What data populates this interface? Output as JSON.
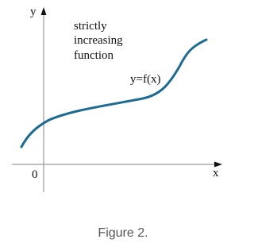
{
  "axes": {
    "y_label": "y",
    "x_label": "x",
    "origin_label": "0"
  },
  "annotation": {
    "lines": [
      "strictly",
      "increasing",
      "function"
    ]
  },
  "curve_label": "y=f(x)",
  "caption": "Figure 2."
}
